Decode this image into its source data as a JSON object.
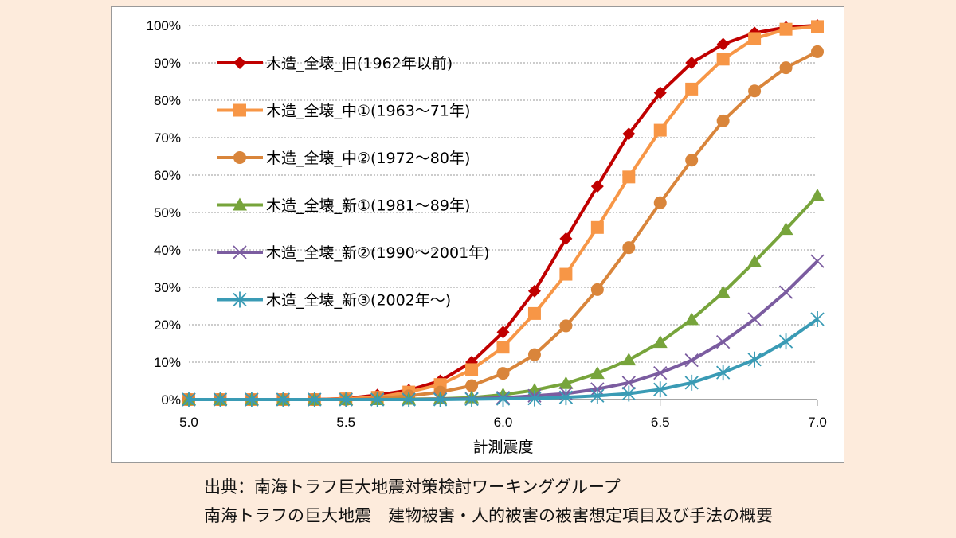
{
  "chart_data": {
    "type": "line",
    "xlabel": "計測震度",
    "ylabel": "",
    "xlim": [
      5.0,
      7.0
    ],
    "ylim": [
      0,
      100
    ],
    "x_ticks": [
      "5.0",
      "5.5",
      "6.0",
      "6.5",
      "7.0"
    ],
    "y_ticks": [
      "0%",
      "10%",
      "20%",
      "30%",
      "40%",
      "50%",
      "60%",
      "70%",
      "80%",
      "90%",
      "100%"
    ],
    "grid": "horizontal dotted",
    "legend": "top-left inside",
    "x": [
      5.0,
      5.1,
      5.2,
      5.3,
      5.4,
      5.5,
      5.6,
      5.7,
      5.8,
      5.9,
      6.0,
      6.1,
      6.2,
      6.3,
      6.4,
      6.5,
      6.6,
      6.7,
      6.8,
      6.9,
      7.0
    ],
    "series": [
      {
        "name": "木造_全壊_旧(1962年以前)",
        "color": "#c00000",
        "marker": "diamond",
        "values": [
          0,
          0,
          0,
          0,
          0,
          0.3,
          1.2,
          2.5,
          5,
          10,
          18,
          29,
          43,
          57,
          71,
          82,
          90,
          95,
          98,
          99.5,
          100
        ]
      },
      {
        "name": "木造_全壊_中①(1963～71年)",
        "color": "#f79646",
        "marker": "square",
        "values": [
          0,
          0,
          0,
          0,
          0,
          0.2,
          0.6,
          2,
          4,
          8,
          14,
          23,
          33.5,
          46,
          59.5,
          72,
          83,
          91,
          96.5,
          99,
          99.7
        ]
      },
      {
        "name": "木造_全壊_中②(1972～80年)",
        "color": "#d9853b",
        "marker": "circle",
        "values": [
          0,
          0,
          0,
          0,
          0,
          0,
          0.3,
          1,
          2,
          3.7,
          7,
          12,
          19.7,
          29.4,
          40.6,
          52.6,
          64,
          74.5,
          82.5,
          88.7,
          93
        ]
      },
      {
        "name": "木造_全壊_新①(1981～89年)",
        "color": "#77a43b",
        "marker": "triangle",
        "values": [
          0,
          0,
          0,
          0,
          0,
          0,
          0,
          0.1,
          0.2,
          0.5,
          1.3,
          2.5,
          4.3,
          7,
          10.6,
          15.3,
          21.4,
          28.6,
          36.8,
          45.5,
          54.5
        ]
      },
      {
        "name": "木造_全壊_新②(1990～2001年)",
        "color": "#7b5ca0",
        "marker": "x",
        "values": [
          0,
          0,
          0,
          0,
          0,
          0,
          0,
          0,
          0.1,
          0.2,
          0.5,
          1,
          1.6,
          2.8,
          4.5,
          7.1,
          10.5,
          15.4,
          21.5,
          28.7,
          37
        ]
      },
      {
        "name": "木造_全壊_新③(2002年～)",
        "color": "#3a9bb5",
        "marker": "star",
        "values": [
          0,
          0,
          0,
          0,
          0,
          0,
          0,
          0,
          0,
          0.1,
          0.2,
          0.3,
          0.6,
          1,
          1.6,
          2.7,
          4.5,
          7.2,
          10.7,
          15.5,
          21.5
        ]
      }
    ]
  },
  "caption": {
    "line1": "出典：南海トラフ巨大地震対策検討ワーキンググループ",
    "line2": "南海トラフの巨大地震　建物被害・人的被害の被害想定項目及び手法の概要"
  }
}
